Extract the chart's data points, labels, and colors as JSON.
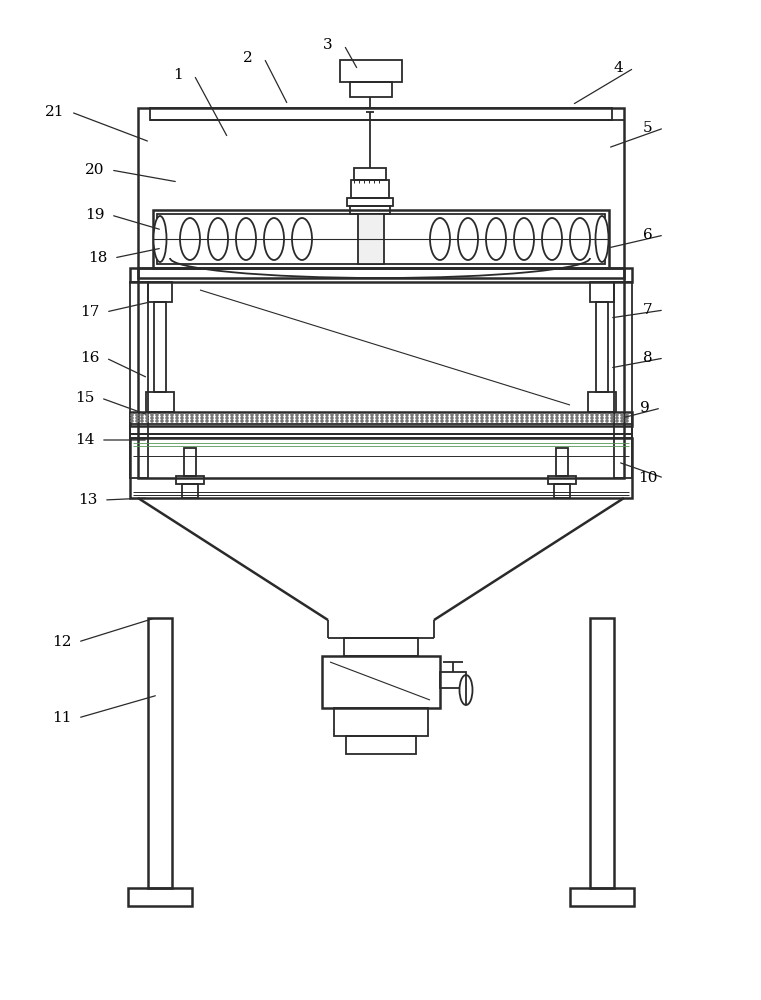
{
  "bg_color": "#ffffff",
  "line_color": "#2a2a2a",
  "line_width": 1.3,
  "label_color": "#000000",
  "label_fontsize": 11,
  "label_data": [
    [
      "1",
      178,
      75,
      228,
      138
    ],
    [
      "2",
      248,
      58,
      288,
      105
    ],
    [
      "3",
      328,
      45,
      358,
      70
    ],
    [
      "4",
      618,
      68,
      572,
      105
    ],
    [
      "5",
      648,
      128,
      608,
      148
    ],
    [
      "6",
      648,
      235,
      608,
      248
    ],
    [
      "7",
      648,
      310,
      610,
      318
    ],
    [
      "8",
      648,
      358,
      610,
      368
    ],
    [
      "9",
      645,
      408,
      622,
      418
    ],
    [
      "10",
      648,
      478,
      618,
      462
    ],
    [
      "11",
      62,
      718,
      158,
      695
    ],
    [
      "12",
      62,
      642,
      155,
      618
    ],
    [
      "13",
      88,
      500,
      148,
      498
    ],
    [
      "14",
      85,
      440,
      148,
      440
    ],
    [
      "15",
      85,
      398,
      148,
      415
    ],
    [
      "16",
      90,
      358,
      148,
      378
    ],
    [
      "17",
      90,
      312,
      150,
      302
    ],
    [
      "18",
      98,
      258,
      162,
      248
    ],
    [
      "19",
      95,
      215,
      162,
      230
    ],
    [
      "20",
      95,
      170,
      178,
      182
    ],
    [
      "21",
      55,
      112,
      150,
      142
    ]
  ]
}
